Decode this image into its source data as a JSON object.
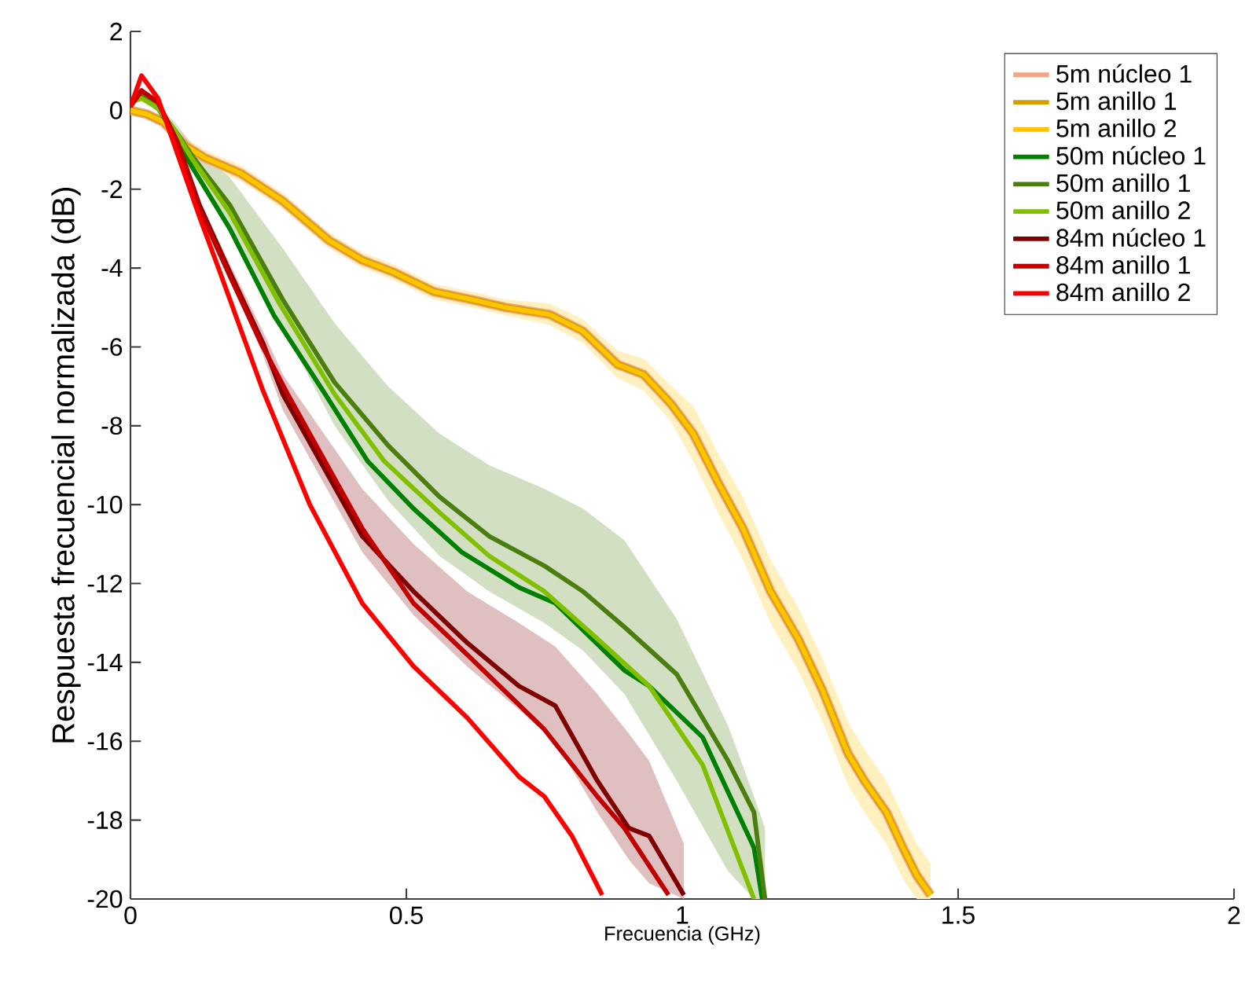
{
  "chart_data": {
    "type": "line",
    "xlabel": "Frecuencia (GHz)",
    "ylabel": "Respuesta frecuencial normalizada (dB)",
    "xlim": [
      0,
      2
    ],
    "ylim": [
      -20,
      2
    ],
    "xticks": [
      0,
      0.5,
      1,
      1.5,
      2
    ],
    "yticks": [
      -20,
      -18,
      -16,
      -14,
      -12,
      -10,
      -8,
      -6,
      -4,
      -2,
      0,
      2
    ],
    "legend": "top right",
    "series": [
      {
        "name": "5m núcleo 1",
        "color": "#f4a582",
        "x": [
          0,
          0.03,
          0.06,
          0.1,
          0.134,
          0.2,
          0.276,
          0.36,
          0.42,
          0.476,
          0.55,
          0.618,
          0.68,
          0.76,
          0.82,
          0.883,
          0.93,
          0.98,
          1.02,
          1.065,
          1.11,
          1.16,
          1.21,
          1.254,
          1.3,
          1.33,
          1.37,
          1.4,
          1.425,
          1.45
        ],
        "values": [
          0,
          -0.1,
          -0.3,
          -0.9,
          -1.2,
          -1.6,
          -2.3,
          -3.3,
          -3.8,
          -4.1,
          -4.6,
          -4.8,
          -5.0,
          -5.18,
          -5.6,
          -6.45,
          -6.7,
          -7.45,
          -8.2,
          -9.44,
          -10.6,
          -12.2,
          -13.4,
          -14.7,
          -16.3,
          -17.0,
          -17.8,
          -18.7,
          -19.4,
          -19.9
        ]
      },
      {
        "name": "5m anillo 1",
        "color": "#d4a000",
        "x": [
          0,
          0.03,
          0.06,
          0.1,
          0.134,
          0.2,
          0.276,
          0.36,
          0.42,
          0.476,
          0.55,
          0.618,
          0.68,
          0.76,
          0.82,
          0.883,
          0.93,
          0.98,
          1.02,
          1.065,
          1.11,
          1.16,
          1.21,
          1.254,
          1.3,
          1.33,
          1.37,
          1.4,
          1.425,
          1.45
        ],
        "values": [
          0,
          -0.1,
          -0.3,
          -0.9,
          -1.2,
          -1.6,
          -2.3,
          -3.3,
          -3.8,
          -4.1,
          -4.6,
          -4.8,
          -5.0,
          -5.18,
          -5.6,
          -6.45,
          -6.7,
          -7.45,
          -8.2,
          -9.44,
          -10.6,
          -12.2,
          -13.4,
          -14.7,
          -16.3,
          -17.0,
          -17.8,
          -18.7,
          -19.4,
          -19.9
        ]
      },
      {
        "name": "5m anillo 2",
        "color": "#ffc400",
        "x": [
          0,
          0.03,
          0.06,
          0.1,
          0.134,
          0.2,
          0.276,
          0.36,
          0.42,
          0.476,
          0.55,
          0.618,
          0.68,
          0.76,
          0.82,
          0.883,
          0.93,
          0.98,
          1.02,
          1.065,
          1.11,
          1.16,
          1.21,
          1.254,
          1.3,
          1.33,
          1.37,
          1.4,
          1.425,
          1.45
        ],
        "values": [
          0,
          -0.1,
          -0.3,
          -0.9,
          -1.2,
          -1.6,
          -2.3,
          -3.3,
          -3.8,
          -4.1,
          -4.6,
          -4.8,
          -5.0,
          -5.18,
          -5.6,
          -6.45,
          -6.7,
          -7.45,
          -8.2,
          -9.44,
          -10.6,
          -12.2,
          -13.4,
          -14.7,
          -16.3,
          -17.0,
          -17.8,
          -18.7,
          -19.4,
          -19.9
        ],
        "upper": [
          0,
          -0.05,
          -0.2,
          -0.7,
          -1.0,
          -1.4,
          -2.1,
          -3.1,
          -3.6,
          -3.9,
          -4.4,
          -4.6,
          -4.8,
          -4.9,
          -5.3,
          -6.1,
          -6.3,
          -7.0,
          -7.5,
          -8.7,
          -9.8,
          -11.4,
          -12.6,
          -13.9,
          -15.5,
          -16.2,
          -17.0,
          -17.9,
          -18.6,
          -19.1
        ],
        "lower": [
          0,
          -0.15,
          -0.4,
          -1.1,
          -1.4,
          -1.8,
          -2.5,
          -3.5,
          -4.0,
          -4.3,
          -4.8,
          -5.0,
          -5.2,
          -5.45,
          -5.9,
          -6.8,
          -7.1,
          -7.9,
          -8.9,
          -10.2,
          -11.4,
          -13.0,
          -14.2,
          -15.5,
          -17.1,
          -17.8,
          -18.6,
          -19.5,
          -20,
          -20
        ]
      },
      {
        "name": "50m núcleo 1",
        "color": "#008000",
        "x": [
          0,
          0.02,
          0.05,
          0.08,
          0.11,
          0.18,
          0.26,
          0.353,
          0.43,
          0.513,
          0.6,
          0.704,
          0.77,
          0.895,
          0.94,
          1.037,
          1.13,
          1.145
        ],
        "values": [
          0.2,
          0.35,
          0.05,
          -0.6,
          -1.4,
          -3.0,
          -5.2,
          -7.2,
          -8.9,
          -10.1,
          -11.2,
          -12.1,
          -12.5,
          -14.2,
          -14.6,
          -15.9,
          -18.7,
          -20
        ]
      },
      {
        "name": "50m anillo 1",
        "color": "#4a7f10",
        "x": [
          0,
          0.02,
          0.05,
          0.08,
          0.114,
          0.18,
          0.276,
          0.37,
          0.467,
          0.56,
          0.65,
          0.75,
          0.82,
          0.895,
          0.99,
          1.083,
          1.13,
          1.15
        ],
        "values": [
          0.2,
          0.35,
          0.05,
          -0.5,
          -1.2,
          -2.4,
          -4.8,
          -6.9,
          -8.5,
          -9.8,
          -10.8,
          -11.55,
          -12.2,
          -13.1,
          -14.3,
          -16.5,
          -17.8,
          -20
        ],
        "upper": [
          0.2,
          0.35,
          0.1,
          -0.3,
          -0.9,
          -1.7,
          -3.5,
          -5.4,
          -7.0,
          -8.2,
          -9.0,
          -9.6,
          -10.1,
          -10.9,
          -12.9,
          -15.6,
          -17.4,
          -18.2
        ],
        "lower": [
          0.2,
          0.35,
          0.0,
          -0.7,
          -1.5,
          -3.0,
          -5.5,
          -8.0,
          -9.9,
          -11.3,
          -12.2,
          -13.0,
          -13.7,
          -14.8,
          -17.0,
          -19.3,
          -20,
          -20
        ]
      },
      {
        "name": "50m anillo 2",
        "color": "#80c000",
        "x": [
          0,
          0.02,
          0.05,
          0.08,
          0.11,
          0.18,
          0.27,
          0.37,
          0.46,
          0.56,
          0.65,
          0.75,
          0.846,
          0.94,
          1.037,
          1.13
        ],
        "values": [
          0.2,
          0.3,
          0.05,
          -0.5,
          -1.2,
          -2.6,
          -4.9,
          -7.2,
          -8.9,
          -10.2,
          -11.3,
          -12.2,
          -13.4,
          -14.6,
          -16.6,
          -20
        ]
      },
      {
        "name": "84m núcleo 1",
        "color": "#800000",
        "x": [
          0,
          0.02,
          0.05,
          0.085,
          0.125,
          0.18,
          0.24,
          0.276,
          0.42,
          0.513,
          0.61,
          0.704,
          0.77,
          0.846,
          0.903,
          0.94,
          1.003
        ],
        "values": [
          0.1,
          0.5,
          0.2,
          -0.8,
          -2.4,
          -4.1,
          -5.9,
          -7.2,
          -10.8,
          -12.2,
          -13.5,
          -14.6,
          -15.1,
          -17.0,
          -18.2,
          -18.4,
          -19.9
        ],
        "upper": [
          0.1,
          0.5,
          0.2,
          -0.8,
          -2.3,
          -3.9,
          -5.6,
          -6.7,
          -9.6,
          -11.0,
          -12.2,
          -13.0,
          -13.6,
          -14.8,
          -15.8,
          -16.5,
          -18.6
        ],
        "lower": [
          0.1,
          0.5,
          0.2,
          -0.8,
          -2.5,
          -4.3,
          -6.2,
          -7.6,
          -11.2,
          -12.8,
          -14.1,
          -15.2,
          -16.0,
          -17.8,
          -19.0,
          -19.6,
          -20
        ]
      },
      {
        "name": "84m anillo 1",
        "color": "#c00000",
        "x": [
          0,
          0.02,
          0.05,
          0.085,
          0.125,
          0.18,
          0.24,
          0.285,
          0.42,
          0.513,
          0.61,
          0.75,
          0.846,
          0.895,
          0.975
        ],
        "values": [
          0.1,
          0.5,
          0.2,
          -0.8,
          -2.5,
          -4.2,
          -6.0,
          -7.2,
          -10.6,
          -12.5,
          -13.8,
          -15.7,
          -17.4,
          -18.2,
          -19.9
        ]
      },
      {
        "name": "84m anillo 2",
        "color": "#ff0000",
        "x": [
          0,
          0.02,
          0.05,
          0.085,
          0.125,
          0.162,
          0.24,
          0.325,
          0.42,
          0.513,
          0.61,
          0.704,
          0.75,
          0.8,
          0.855
        ],
        "values": [
          0.1,
          0.88,
          0.3,
          -1.1,
          -2.7,
          -4.1,
          -7.1,
          -10.0,
          -12.5,
          -14.1,
          -15.4,
          -16.9,
          -17.4,
          -18.4,
          -19.9
        ]
      }
    ]
  }
}
